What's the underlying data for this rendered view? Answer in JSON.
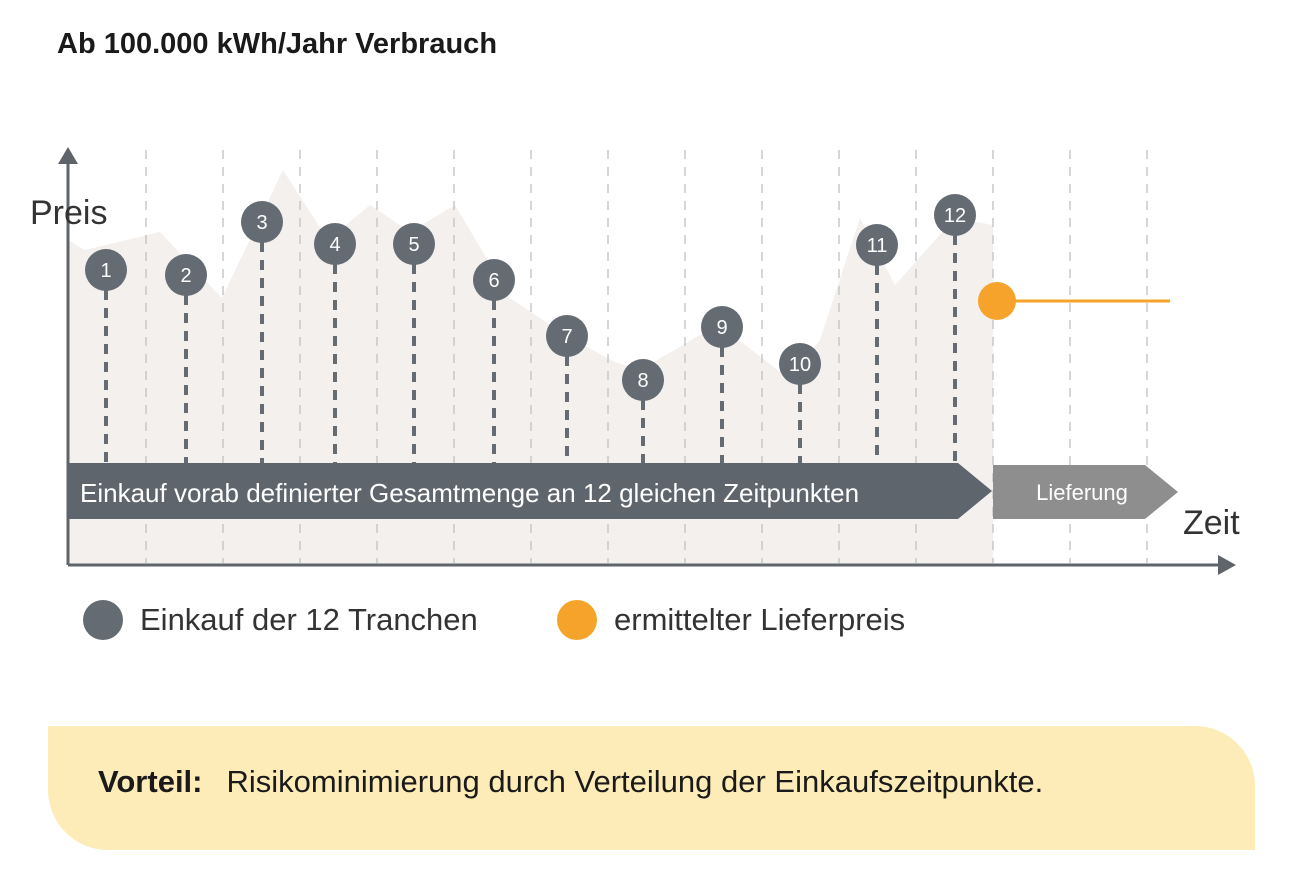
{
  "title": "Ab 100.000 kWh/Jahr Verbrauch",
  "axis": {
    "y_label": "Preis",
    "x_label": "Zeit"
  },
  "bars": {
    "purchase": "Einkauf vorab definierter Gesamtmenge an 12 gleichen Zeitpunkten",
    "delivery": "Lieferung"
  },
  "tranches": [
    {
      "label": "1"
    },
    {
      "label": "2"
    },
    {
      "label": "3"
    },
    {
      "label": "4"
    },
    {
      "label": "5"
    },
    {
      "label": "6"
    },
    {
      "label": "7"
    },
    {
      "label": "8"
    },
    {
      "label": "9"
    },
    {
      "label": "10"
    },
    {
      "label": "11"
    },
    {
      "label": "12"
    }
  ],
  "legend": [
    {
      "label": "Einkauf der 12 Tranchen",
      "color": "#646b73"
    },
    {
      "label": "ermittelter Lieferpreis",
      "color": "#f5a32a"
    }
  ],
  "benefit": {
    "label": "Vorteil:",
    "text": "Risikominimierung durch Verteilung der Einkaufszeitpunkte."
  },
  "colors": {
    "tranche": "#646b73",
    "delivery_price": "#f5a32a",
    "area": "#f3f0ed",
    "grid": "#c8c8c8",
    "axis": "#5f646a",
    "delivery_bar": "#8e8e8e"
  }
}
